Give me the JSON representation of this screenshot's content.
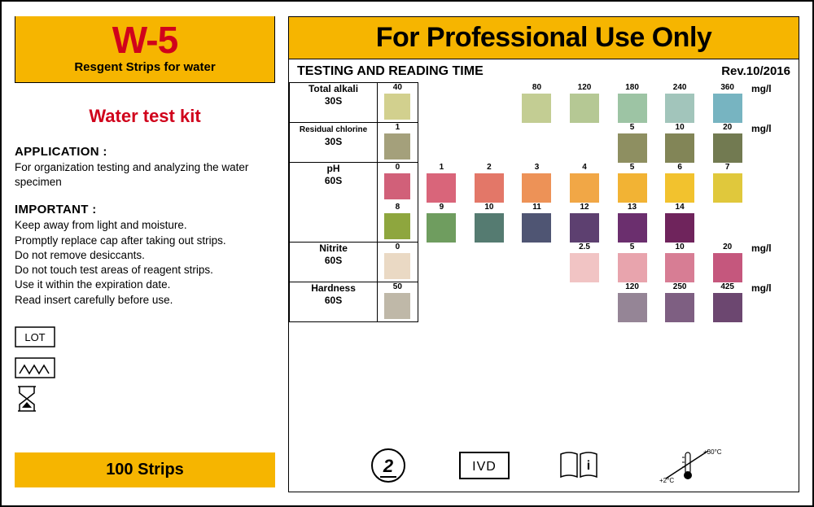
{
  "left": {
    "code": "W-5",
    "code_sub": "Resgent Strips for water",
    "kit_title": "Water test kit",
    "application_h": "APPLICATION :",
    "application_p": "For organization testing and analyzing the water specimen",
    "important_h": "IMPORTANT :",
    "important_p": "Keep away from light and moisture.\nPromptly replace cap after taking out strips.\nDo not remove desiccants.\nDo not touch test areas of reagent strips.\nUse it within the expiration date.\nRead insert carefully before use.",
    "lot_label": "LOT",
    "strips_label": "100 Strips"
  },
  "right": {
    "banner": "For Professional Use Only",
    "chart_title": "TESTING AND READING TIME",
    "revision": "Rev.10/2016",
    "unit": "mg/l"
  },
  "rows": [
    {
      "label_top": "Total alkali",
      "label_bottom": "30S",
      "first": {
        "val": "40",
        "color": "#d2d08e"
      },
      "cells": [
        {
          "val": "",
          "color": ""
        },
        {
          "val": "",
          "color": ""
        },
        {
          "val": "80",
          "color": "#c3cd93"
        },
        {
          "val": "120",
          "color": "#b5c894"
        },
        {
          "val": "180",
          "color": "#9dc4a4"
        },
        {
          "val": "240",
          "color": "#a2c5bb"
        },
        {
          "val": "360",
          "color": "#77b4c1"
        }
      ],
      "unit": "mg/l"
    },
    {
      "label_top": "Residual chlorine",
      "label_bottom": "30S",
      "first": {
        "val": "1",
        "color": "#a4a07b"
      },
      "cells": [
        {
          "val": "",
          "color": ""
        },
        {
          "val": "",
          "color": ""
        },
        {
          "val": "",
          "color": ""
        },
        {
          "val": "",
          "color": ""
        },
        {
          "val": "5",
          "color": "#8e8f61"
        },
        {
          "val": "10",
          "color": "#828557"
        },
        {
          "val": "20",
          "color": "#727a51"
        }
      ],
      "unit": "mg/l"
    },
    {
      "label_top": "pH",
      "label_bottom": "60S",
      "first": {
        "val": "0",
        "color": "#d16079"
      },
      "cells": [
        {
          "val": "1",
          "color": "#d9657a"
        },
        {
          "val": "2",
          "color": "#e37768"
        },
        {
          "val": "3",
          "color": "#ed9257"
        },
        {
          "val": "4",
          "color": "#f1a746"
        },
        {
          "val": "5",
          "color": "#f2b334"
        },
        {
          "val": "6",
          "color": "#f2c22e"
        },
        {
          "val": "7",
          "color": "#e0c83c"
        }
      ],
      "unit": ""
    },
    {
      "label_top": "",
      "label_bottom": "",
      "first": {
        "val": "8",
        "color": "#8ea63e"
      },
      "cells": [
        {
          "val": "9",
          "color": "#6f9d5f"
        },
        {
          "val": "10",
          "color": "#557b71"
        },
        {
          "val": "11",
          "color": "#4f5573"
        },
        {
          "val": "12",
          "color": "#5d4070"
        },
        {
          "val": "13",
          "color": "#6b2f6e"
        },
        {
          "val": "14",
          "color": "#6f245c"
        }
      ],
      "unit": "",
      "continuation": true
    },
    {
      "label_top": "Nitrite",
      "label_bottom": "60S",
      "first": {
        "val": "0",
        "color": "#ead9c4"
      },
      "cells": [
        {
          "val": "",
          "color": ""
        },
        {
          "val": "",
          "color": ""
        },
        {
          "val": "",
          "color": ""
        },
        {
          "val": "2.5",
          "color": "#f1c4c4"
        },
        {
          "val": "5",
          "color": "#e8a4ad"
        },
        {
          "val": "10",
          "color": "#d77d94"
        },
        {
          "val": "20",
          "color": "#c5577d"
        }
      ],
      "unit": "mg/l"
    },
    {
      "label_top": "Hardness",
      "label_bottom": "60S",
      "first": {
        "val": "50",
        "color": "#bfb8a8"
      },
      "cells": [
        {
          "val": "",
          "color": ""
        },
        {
          "val": "",
          "color": ""
        },
        {
          "val": "",
          "color": ""
        },
        {
          "val": "",
          "color": ""
        },
        {
          "val": "120",
          "color": "#958596"
        },
        {
          "val": "250",
          "color": "#7e5f82"
        },
        {
          "val": "425",
          "color": "#6c4770"
        }
      ],
      "unit": "mg/l",
      "last": true
    }
  ],
  "bottom_icons": {
    "disposal": "2",
    "ivd": "IVD",
    "manual": "i",
    "temp_low": "+2°C",
    "temp_high": "+30°C"
  },
  "colors": {
    "accent_yellow": "#f6b500",
    "accent_red": "#d0021b",
    "border": "#000000"
  }
}
